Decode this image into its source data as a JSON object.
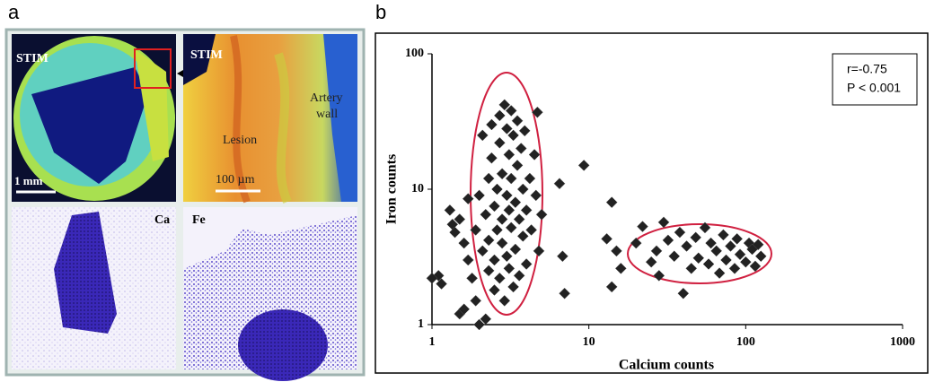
{
  "panel_a": {
    "label": "a",
    "images": [
      {
        "labels": [
          "STIM",
          "1 mm"
        ]
      },
      {
        "labels": [
          "STIM",
          "Artery",
          "wall",
          "Lesion",
          "100 µm"
        ]
      },
      {
        "labels": [
          "Ca"
        ]
      },
      {
        "labels": [
          "Fe"
        ]
      }
    ]
  },
  "chart_data": {
    "type": "scatter",
    "panel_label": "b",
    "x_label": "Calcium counts",
    "y_label": "Iron counts",
    "annotations": [
      "r=-0.75",
      "P < 0.001"
    ],
    "log_x": true,
    "log_y": true,
    "xlim": [
      1,
      1000
    ],
    "ylim": [
      1,
      100
    ],
    "xticks": [
      1,
      10,
      100,
      1000
    ],
    "yticks": [
      1,
      10,
      100
    ],
    "series": [
      {
        "color": "#222222",
        "x": [
          1.1,
          1.0,
          1.15,
          1.3,
          1.35,
          1.4,
          1.5,
          1.5,
          1.6,
          1.6,
          1.7,
          1.7,
          1.8,
          1.9,
          1.9,
          2.0,
          2.0,
          2.1,
          2.1,
          2.2,
          2.2,
          2.3,
          2.3,
          2.3,
          2.4,
          2.4,
          2.5,
          2.5,
          2.5,
          2.6,
          2.6,
          2.7,
          2.7,
          2.7,
          2.8,
          2.8,
          2.8,
          2.9,
          2.9,
          3.0,
          3.0,
          3.0,
          3.1,
          3.1,
          3.1,
          3.2,
          3.2,
          3.2,
          3.3,
          3.3,
          3.4,
          3.4,
          3.5,
          3.5,
          3.6,
          3.6,
          3.7,
          3.8,
          3.8,
          3.9,
          4.0,
          4.0,
          4.2,
          4.3,
          4.5,
          4.6,
          4.7,
          4.8,
          5.0,
          6.5,
          6.8,
          7,
          9.3,
          13,
          14,
          14,
          15,
          16,
          20,
          22,
          25,
          27,
          28,
          30,
          32,
          35,
          38,
          40,
          42,
          45,
          48,
          50,
          55,
          58,
          60,
          65,
          68,
          72,
          75,
          80,
          85,
          88,
          92,
          100,
          105,
          110,
          115,
          120,
          125
        ],
        "values": [
          2.3,
          2.2,
          2.0,
          7,
          5.5,
          4.8,
          6,
          1.2,
          1.3,
          4,
          8.5,
          3,
          2.2,
          1.5,
          5,
          1.0,
          9,
          3.5,
          25,
          1.1,
          6.5,
          12,
          4.2,
          2.5,
          30,
          17,
          7.5,
          3,
          1.8,
          10,
          5,
          35,
          22,
          2.2,
          13,
          6,
          4,
          42,
          1.5,
          28,
          9,
          3.2,
          18,
          7,
          2.6,
          38,
          12,
          5.2,
          1.9,
          25,
          8,
          3.6,
          32,
          15,
          6,
          2.3,
          20,
          10,
          4.5,
          27,
          7,
          2.8,
          12,
          5,
          18,
          9,
          37,
          3.5,
          6.5,
          11,
          3.2,
          1.7,
          15,
          4.3,
          8,
          1.9,
          3.5,
          2.6,
          4,
          5.3,
          2.9,
          3.5,
          2.3,
          5.7,
          4.2,
          3.2,
          4.8,
          1.7,
          3.8,
          2.6,
          4.4,
          3.1,
          5.2,
          2.8,
          4,
          3.5,
          2.4,
          4.6,
          3,
          3.8,
          2.6,
          4.3,
          3.3,
          2.9,
          4,
          3.6,
          2.7,
          3.9,
          3.2
        ]
      }
    ]
  }
}
